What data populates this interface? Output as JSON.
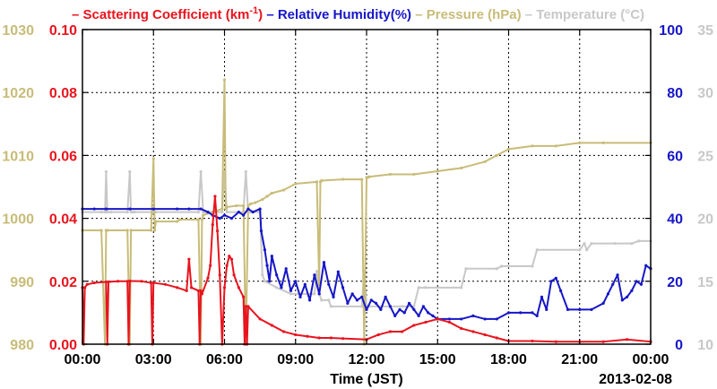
{
  "chart_data": {
    "type": "line",
    "title": "",
    "xlabel": "Time (JST)",
    "date_label": "2013-02-08",
    "grid": true,
    "x_ticks": [
      "00:00",
      "03:00",
      "06:00",
      "09:00",
      "12:00",
      "15:00",
      "18:00",
      "21:00",
      "00:00"
    ],
    "xlim_hours": [
      0,
      24
    ],
    "legend": [
      {
        "dash": "–",
        "text": "Scattering Coefficient (km",
        "sup": "-1",
        "tail": ")",
        "color": "#e8141e"
      },
      {
        "dash": "–",
        "text": "Relative Humidity(%)",
        "color": "#1616c8"
      },
      {
        "dash": "–",
        "text": "Pressure (hPa)",
        "color": "#c8bc78"
      },
      {
        "dash": "–",
        "text": "Temperature (°C)",
        "color": "#c8c8c8"
      }
    ],
    "axes": {
      "scattering": {
        "side": "left-inner",
        "ylim": [
          0,
          0.1
        ],
        "ticks": [
          "0.00",
          "0.02",
          "0.04",
          "0.06",
          "0.08",
          "0.10"
        ],
        "color": "#e8141e"
      },
      "pressure": {
        "side": "left-outer",
        "ylim": [
          980,
          1030
        ],
        "ticks": [
          "980",
          "990",
          "1000",
          "1010",
          "1020",
          "1030"
        ],
        "color": "#c8bc78"
      },
      "humidity": {
        "side": "right-inner",
        "ylim": [
          0,
          100
        ],
        "ticks": [
          "0",
          "20",
          "40",
          "60",
          "80",
          "100"
        ],
        "color": "#1616c8"
      },
      "temperature": {
        "side": "right-outer",
        "ylim": [
          10,
          35
        ],
        "ticks": [
          "10",
          "15",
          "20",
          "25",
          "30",
          "35"
        ],
        "color": "#c8c8c8"
      }
    },
    "series": [
      {
        "name": "Temperature",
        "axis": "temperature",
        "color": "#c8c8c8",
        "x": [
          0,
          0.8,
          0.95,
          1.0,
          1.05,
          1.2,
          1.9,
          2.0,
          2.05,
          2.1,
          2.2,
          3.0,
          3.1,
          4.9,
          5.0,
          5.1,
          5.2,
          5.9,
          6.0,
          6.1,
          6.8,
          6.9,
          7.0,
          7.1,
          7.5,
          7.6,
          7.7,
          8.2,
          8.8,
          9.8,
          9.9,
          10.0,
          10.1,
          10.4,
          10.5,
          11.8,
          11.9,
          12.0,
          12.1,
          13.0,
          13.5,
          14.0,
          14.2,
          14.5,
          16.0,
          16.2,
          17.5,
          17.7,
          18.0,
          19.0,
          19.2,
          21.0,
          21.2,
          21.3,
          21.5,
          22.5,
          23.2,
          23.5,
          24.0
        ],
        "y": [
          20.5,
          20.5,
          20.5,
          23.7,
          20.5,
          20.5,
          20.5,
          23.7,
          20.5,
          20.5,
          20.5,
          20.5,
          20.5,
          20.5,
          23.7,
          20.5,
          20.5,
          20.5,
          23.7,
          20.5,
          20.5,
          23.7,
          20.5,
          20.5,
          20.5,
          15.5,
          15.0,
          14.5,
          14.0,
          14.0,
          15.8,
          14.0,
          13.5,
          13.5,
          13.0,
          13.0,
          15.8,
          13.0,
          13.0,
          13.0,
          13.0,
          13.0,
          14.5,
          14.5,
          14.5,
          16.0,
          16.0,
          16.2,
          16.2,
          16.2,
          17.5,
          17.5,
          18.0,
          17.5,
          18.0,
          18.0,
          18.0,
          18.2,
          18.2
        ]
      },
      {
        "name": "Pressure",
        "axis": "pressure",
        "color": "#c8bc78",
        "x": [
          0,
          0.8,
          0.95,
          1.0,
          1.05,
          1.9,
          2.0,
          2.05,
          2.9,
          3.0,
          3.05,
          3.1,
          4.0,
          4.1,
          4.9,
          5.0,
          5.05,
          5.1,
          5.5,
          5.9,
          6.0,
          6.05,
          6.1,
          6.5,
          6.8,
          6.9,
          7.0,
          7.1,
          7.3,
          7.6,
          7.8,
          8.0,
          8.5,
          9.0,
          9.9,
          10.0,
          10.05,
          10.1,
          11.0,
          11.8,
          11.9,
          12.0,
          12.05,
          12.1,
          13.0,
          14.0,
          15.0,
          16.0,
          17.0,
          17.5,
          18.0,
          19.0,
          20.0,
          21.0,
          22.0,
          24.0
        ],
        "y": [
          998.1,
          998.1,
          980,
          998.1,
          998.1,
          998.1,
          980,
          998.1,
          998.1,
          1009.5,
          998.1,
          999.5,
          999.5,
          999.8,
          999.8,
          980,
          999.8,
          1000.5,
          1001.0,
          1001.5,
          1022.0,
          1001.5,
          1001.8,
          1002.0,
          1002.0,
          980,
          1002.0,
          1002.3,
          1002.5,
          1003.0,
          1003.5,
          1004.0,
          1004.5,
          1005.5,
          1005.8,
          989.5,
          1005.8,
          1006.0,
          1006.2,
          1006.2,
          980,
          1006.5,
          1006.5,
          1006.6,
          1007.0,
          1007.0,
          1007.5,
          1008.0,
          1009.0,
          1010.0,
          1011.0,
          1011.5,
          1011.5,
          1012.0,
          1012.0,
          1012.0
        ]
      },
      {
        "name": "Relative Humidity",
        "axis": "humidity",
        "color": "#1616c8",
        "x": [
          0,
          0.5,
          1.0,
          2.0,
          3.0,
          4.0,
          4.5,
          5.0,
          5.3,
          5.5,
          5.8,
          6.0,
          6.3,
          6.6,
          6.8,
          7.0,
          7.2,
          7.5,
          7.55,
          7.7,
          7.8,
          7.9,
          8.0,
          8.2,
          8.4,
          8.6,
          8.8,
          9.0,
          9.2,
          9.4,
          9.6,
          9.8,
          10.0,
          10.2,
          10.4,
          10.6,
          10.8,
          11.0,
          11.2,
          11.4,
          11.6,
          11.8,
          12.0,
          12.2,
          12.4,
          12.6,
          12.8,
          13.0,
          13.2,
          13.4,
          13.6,
          13.8,
          14.0,
          14.2,
          14.4,
          14.6,
          14.8,
          15.0,
          15.5,
          16.0,
          16.5,
          17.0,
          17.5,
          18.0,
          18.5,
          19.0,
          19.2,
          19.4,
          19.6,
          19.8,
          20.0,
          20.2,
          20.5,
          21.0,
          21.5,
          22.0,
          22.2,
          22.4,
          22.6,
          22.8,
          23.0,
          23.2,
          23.4,
          23.6,
          23.8,
          24.0
        ],
        "y": [
          43,
          43,
          43,
          43,
          43,
          43,
          43,
          43,
          42,
          41,
          40,
          41,
          40,
          42,
          41,
          43,
          42,
          43,
          36,
          30,
          25,
          20,
          28,
          22,
          18,
          24,
          17,
          20,
          15,
          19,
          14,
          22,
          16,
          26,
          19,
          15,
          23,
          18,
          13,
          16,
          14,
          15,
          11,
          14,
          13,
          11,
          15,
          12,
          9,
          11,
          10,
          13,
          11,
          9,
          12,
          10,
          9,
          8,
          8,
          8,
          9,
          8,
          8,
          10,
          10,
          10,
          9,
          15,
          11,
          20,
          21,
          17,
          11,
          11,
          11,
          13,
          16,
          19,
          22,
          14,
          15,
          17,
          20,
          19,
          25,
          24
        ]
      },
      {
        "name": "Scattering Coefficient",
        "axis": "scattering",
        "color": "#e8141e",
        "x": [
          0,
          0.05,
          0.1,
          0.2,
          0.5,
          1.0,
          1.05,
          1.1,
          1.5,
          1.9,
          1.95,
          2.0,
          2.5,
          2.9,
          2.95,
          3.0,
          3.5,
          4.0,
          4.4,
          4.5,
          4.6,
          4.9,
          4.95,
          5.0,
          5.05,
          5.3,
          5.4,
          5.5,
          5.6,
          5.7,
          5.8,
          5.9,
          6.0,
          6.1,
          6.2,
          6.3,
          6.4,
          6.6,
          6.8,
          6.85,
          6.9,
          6.95,
          7.0,
          7.5,
          8.0,
          8.5,
          9.0,
          9.5,
          10.0,
          10.5,
          11.0,
          12.0,
          12.5,
          13.0,
          13.5,
          14.0,
          14.5,
          15.0,
          15.5,
          16.0,
          16.5,
          17.0,
          17.5,
          18.0,
          19.0,
          20.0,
          21.0,
          22.0,
          23.0,
          24.0
        ],
        "y": [
          0.018,
          0.0,
          0.018,
          0.019,
          0.0195,
          0.0198,
          0.0,
          0.0198,
          0.02,
          0.02,
          0.0,
          0.0201,
          0.02,
          0.0195,
          0.0,
          0.0195,
          0.019,
          0.018,
          0.017,
          0.027,
          0.018,
          0.017,
          0.0,
          0.017,
          0.016,
          0.021,
          0.025,
          0.038,
          0.047,
          0.036,
          0.022,
          0.0,
          0.018,
          0.025,
          0.028,
          0.027,
          0.022,
          0.018,
          0.015,
          0.0,
          0.012,
          0.0,
          0.012,
          0.008,
          0.006,
          0.004,
          0.003,
          0.0025,
          0.002,
          0.002,
          0.0018,
          0.0015,
          0.003,
          0.004,
          0.004,
          0.006,
          0.007,
          0.008,
          0.007,
          0.005,
          0.004,
          0.003,
          0.002,
          0.001,
          0.001,
          0.0008,
          0.0008,
          0.0008,
          0.0015,
          0.0008
        ]
      }
    ]
  }
}
